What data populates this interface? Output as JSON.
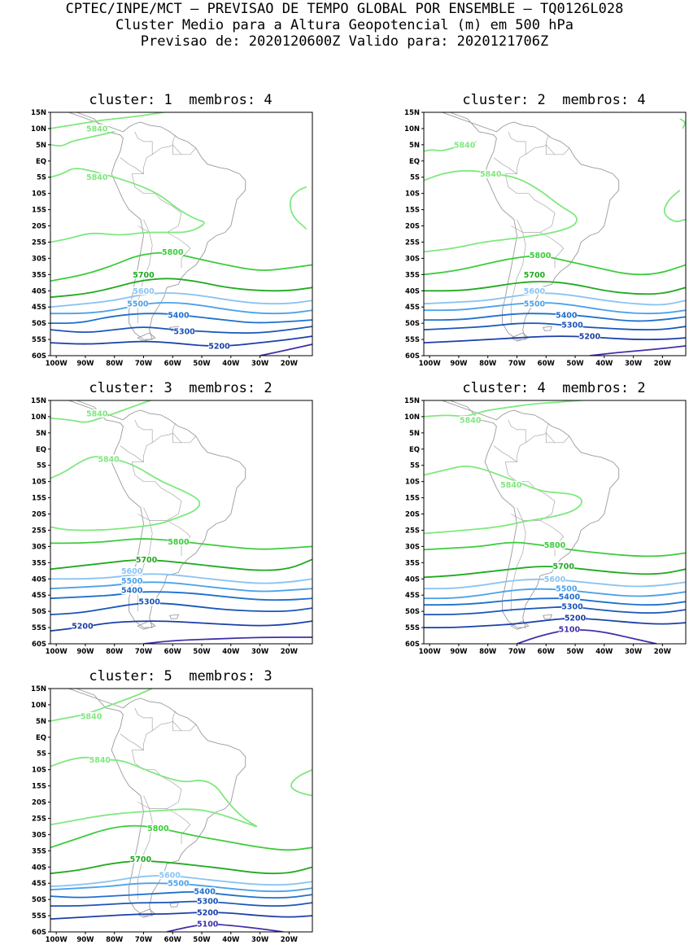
{
  "header": {
    "line1": "CPTEC/INPE/MCT – PREVISAO DE TEMPO GLOBAL POR ENSEMBLE – TQ0126L028",
    "line2": "Cluster Medio para a Altura Geopotencial (m) em 500 hPa",
    "line3": "Previsao de: 2020120600Z    Valido para: 2020121706Z"
  },
  "axes": {
    "lat_labels": [
      "15N",
      "10N",
      "5N",
      "EQ",
      "5S",
      "10S",
      "15S",
      "20S",
      "25S",
      "30S",
      "35S",
      "40S",
      "45S",
      "50S",
      "55S",
      "60S"
    ],
    "lon_labels": [
      "100W",
      "90W",
      "80W",
      "70W",
      "60W",
      "50W",
      "40W",
      "30W",
      "20W"
    ]
  },
  "contour_colors": {
    "5840": "#7fe87f",
    "5800": "#3ccc3c",
    "5700": "#22aa22",
    "5600": "#8cc4f2",
    "5500": "#4da2e8",
    "5400": "#2070cc",
    "5300": "#1a55b8",
    "5200": "#1a3fa8",
    "5100": "#4030a8"
  },
  "panels": [
    {
      "title": "cluster: 1  membros: 4",
      "labels": {
        "5840": "5840",
        "5800": "5800",
        "5700": "5700",
        "5600": "5600",
        "5500": "5500",
        "5400": "5400",
        "5300": "5300",
        "5200": "5200"
      }
    },
    {
      "title": "cluster: 2  membros: 4",
      "labels": {
        "5840": "5840",
        "5800": "5800",
        "5700": "5700",
        "5600": "5600",
        "5500": "5500",
        "5400": "5400",
        "5300": "5300",
        "5200": "5200"
      }
    },
    {
      "title": "cluster: 3  membros: 2",
      "labels": {
        "5840": "5840",
        "5800": "5800",
        "5700": "5700",
        "5600": "5600",
        "5500": "5500",
        "5400": "5400",
        "5300": "5300",
        "5200": "5200"
      }
    },
    {
      "title": "cluster: 4  membros: 2",
      "labels": {
        "5840": "5840",
        "5800": "5800",
        "5700": "5700",
        "5600": "5600",
        "5500": "5500",
        "5400": "5400",
        "5300": "5300",
        "5200": "5200",
        "5100": "5100"
      }
    },
    {
      "title": "cluster: 5  membros: 3",
      "labels": {
        "5840": "5840",
        "5800": "5800",
        "5700": "5700",
        "5600": "5600",
        "5500": "5500",
        "5400": "5400",
        "5300": "5300",
        "5200": "5200",
        "5100": "5100"
      }
    }
  ]
}
